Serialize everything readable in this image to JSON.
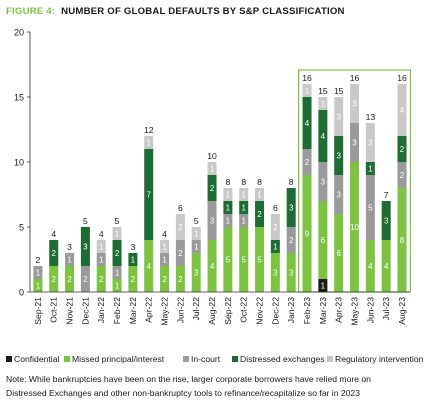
{
  "chart_data": {
    "type": "bar",
    "stacked": true,
    "title_prefix": "FIGURE 4:",
    "title": "NUMBER OF GLOBAL DEFAULTS BY S&P CLASSIFICATION",
    "xlabel": "",
    "ylabel": "",
    "ylim": [
      0,
      20
    ],
    "yticks": [
      0,
      5,
      10,
      15,
      20
    ],
    "categories": [
      "Sep-21",
      "Oct-21",
      "Nov-21",
      "Dec-21",
      "Jan-22",
      "Feb-22",
      "Mar-22",
      "Apr-22",
      "May-22",
      "Jun-22",
      "Jul-22",
      "Aug-22",
      "Sep-22",
      "Oct-22",
      "Nov-22",
      "Dec-22",
      "Jan-23",
      "Feb-23",
      "Mar-23",
      "Apr-23",
      "May-23",
      "Jun-23",
      "Jul-23",
      "Aug-23"
    ],
    "totals": [
      "2",
      "4",
      "3",
      "5",
      "4",
      "5",
      "3",
      "12",
      "4",
      "6",
      "5",
      "10",
      "8",
      "8",
      "8",
      "6",
      "8",
      "16",
      "15",
      "15",
      "16",
      "13",
      "7",
      "16"
    ],
    "highlight_range": [
      "Feb-23",
      "Aug-23"
    ],
    "series": [
      {
        "name": "Confidential",
        "color": "#1a1a1a",
        "values": [
          0,
          0,
          0,
          0,
          0,
          0,
          0,
          0,
          0,
          0,
          0,
          0,
          0,
          0,
          0,
          0,
          0,
          0,
          1,
          0,
          0,
          0,
          0,
          0
        ],
        "labels": [
          "",
          "",
          "",
          "",
          "",
          "",
          "",
          "",
          "",
          "",
          "",
          "",
          "",
          "",
          "",
          "",
          "",
          "",
          "1",
          "",
          "",
          "",
          "",
          ""
        ]
      },
      {
        "name": "Missed principal/interest",
        "color": "#7dc243",
        "values": [
          1,
          2,
          2,
          0,
          2,
          1,
          2,
          4,
          2,
          2,
          3,
          4,
          5,
          5,
          5,
          3,
          3,
          9,
          6,
          6,
          10,
          4,
          4,
          8
        ],
        "labels": [
          "1",
          "2",
          "2",
          "",
          "2",
          "1",
          "2",
          "4",
          "2",
          "2",
          "3",
          "4",
          "5",
          "5",
          "5",
          "3",
          "3",
          "9",
          "6",
          "6",
          "10",
          "4",
          "4",
          "8"
        ]
      },
      {
        "name": "In-court",
        "color": "#9a9a9a",
        "values": [
          1,
          0,
          1,
          2,
          1,
          1,
          0,
          0,
          1,
          2,
          1,
          3,
          1,
          1,
          0,
          0,
          2,
          2,
          3,
          3,
          3,
          5,
          0,
          2
        ],
        "labels": [
          "1",
          "",
          "1",
          "2",
          "1",
          "1",
          "",
          "",
          "1",
          "2",
          "1",
          "3",
          "1",
          "1",
          "",
          "",
          "2",
          "2",
          "3",
          "3",
          "3",
          "5",
          "",
          "2"
        ]
      },
      {
        "name": "Distressed exchanges",
        "color": "#1e6b33",
        "values": [
          0,
          2,
          0,
          3,
          0,
          2,
          1,
          7,
          0,
          0,
          0,
          2,
          1,
          1,
          2,
          1,
          3,
          4,
          4,
          3,
          0,
          1,
          3,
          2
        ],
        "labels": [
          "",
          "2",
          "",
          "3",
          "",
          "2",
          "1",
          "7",
          "",
          "",
          "",
          "2",
          "1",
          "1",
          "2",
          "1",
          "3",
          "4",
          "4",
          "3",
          "",
          "1",
          "3",
          "2"
        ]
      },
      {
        "name": "Regulatory intervention",
        "color": "#c9c9c9",
        "values": [
          0,
          0,
          0,
          0,
          1,
          1,
          0,
          1,
          1,
          2,
          1,
          1,
          1,
          1,
          1,
          2,
          0,
          1,
          1,
          3,
          3,
          3,
          0,
          4
        ],
        "labels": [
          "",
          "",
          "",
          "",
          "1",
          "1",
          "",
          "1",
          "1",
          "2",
          "1",
          "1",
          "1",
          "1",
          "1",
          "2",
          "",
          "1",
          "1",
          "3",
          "3",
          "3",
          "",
          "4"
        ]
      }
    ]
  },
  "legend": {
    "items": [
      {
        "label": "Confidential",
        "color": "#1a1a1a"
      },
      {
        "label": "Missed principal/interest",
        "color": "#7dc243"
      },
      {
        "label": "In-court",
        "color": "#9a9a9a"
      },
      {
        "label": "Distressed exchanges",
        "color": "#1e6b33"
      },
      {
        "label": "Regulatory intervention",
        "color": "#c9c9c9"
      }
    ]
  },
  "note": {
    "line1": "Note: While bankruptcies have been on the rise, larger corporate borrowers have relied more on",
    "line2": "Distressed Exchanges and other non-bankruptcy tools to refinance/recapitalize so far in 2023"
  },
  "colors": {
    "title_accent": "#7dc243",
    "title_text": "#1a1a1a",
    "highlight_border": "#7dc243",
    "axis": "#333333"
  }
}
